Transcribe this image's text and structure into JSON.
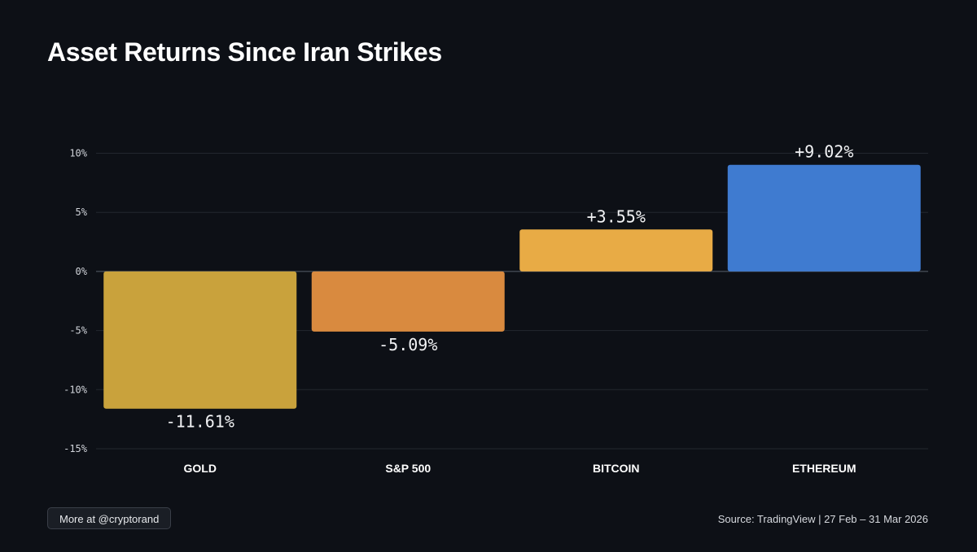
{
  "chart_data": {
    "type": "bar",
    "title": "Asset Returns Since Iran Strikes",
    "categories": [
      "GOLD",
      "S&P 500",
      "BITCOIN",
      "ETHEREUM"
    ],
    "values": [
      -11.61,
      -5.09,
      3.55,
      9.02
    ],
    "data_labels": [
      "-11.61%",
      "-5.09%",
      "+3.55%",
      "+9.02%"
    ],
    "colors": [
      "#c9a23c",
      "#d98a3f",
      "#e8ab45",
      "#3f7bd0"
    ],
    "yticks": [
      10,
      5,
      0,
      -5,
      -10,
      -15
    ],
    "ytick_labels": [
      "10%",
      "5%",
      "0%",
      "-5%",
      "-10%",
      "-15%"
    ],
    "ylim": [
      -15,
      10
    ],
    "xlabel": "",
    "ylabel": "",
    "grid": true,
    "legend": "none"
  },
  "footer": {
    "more_label": "More at @cryptorand",
    "source_text": "Source: TradingView | 27 Feb – 31 Mar 2026"
  }
}
